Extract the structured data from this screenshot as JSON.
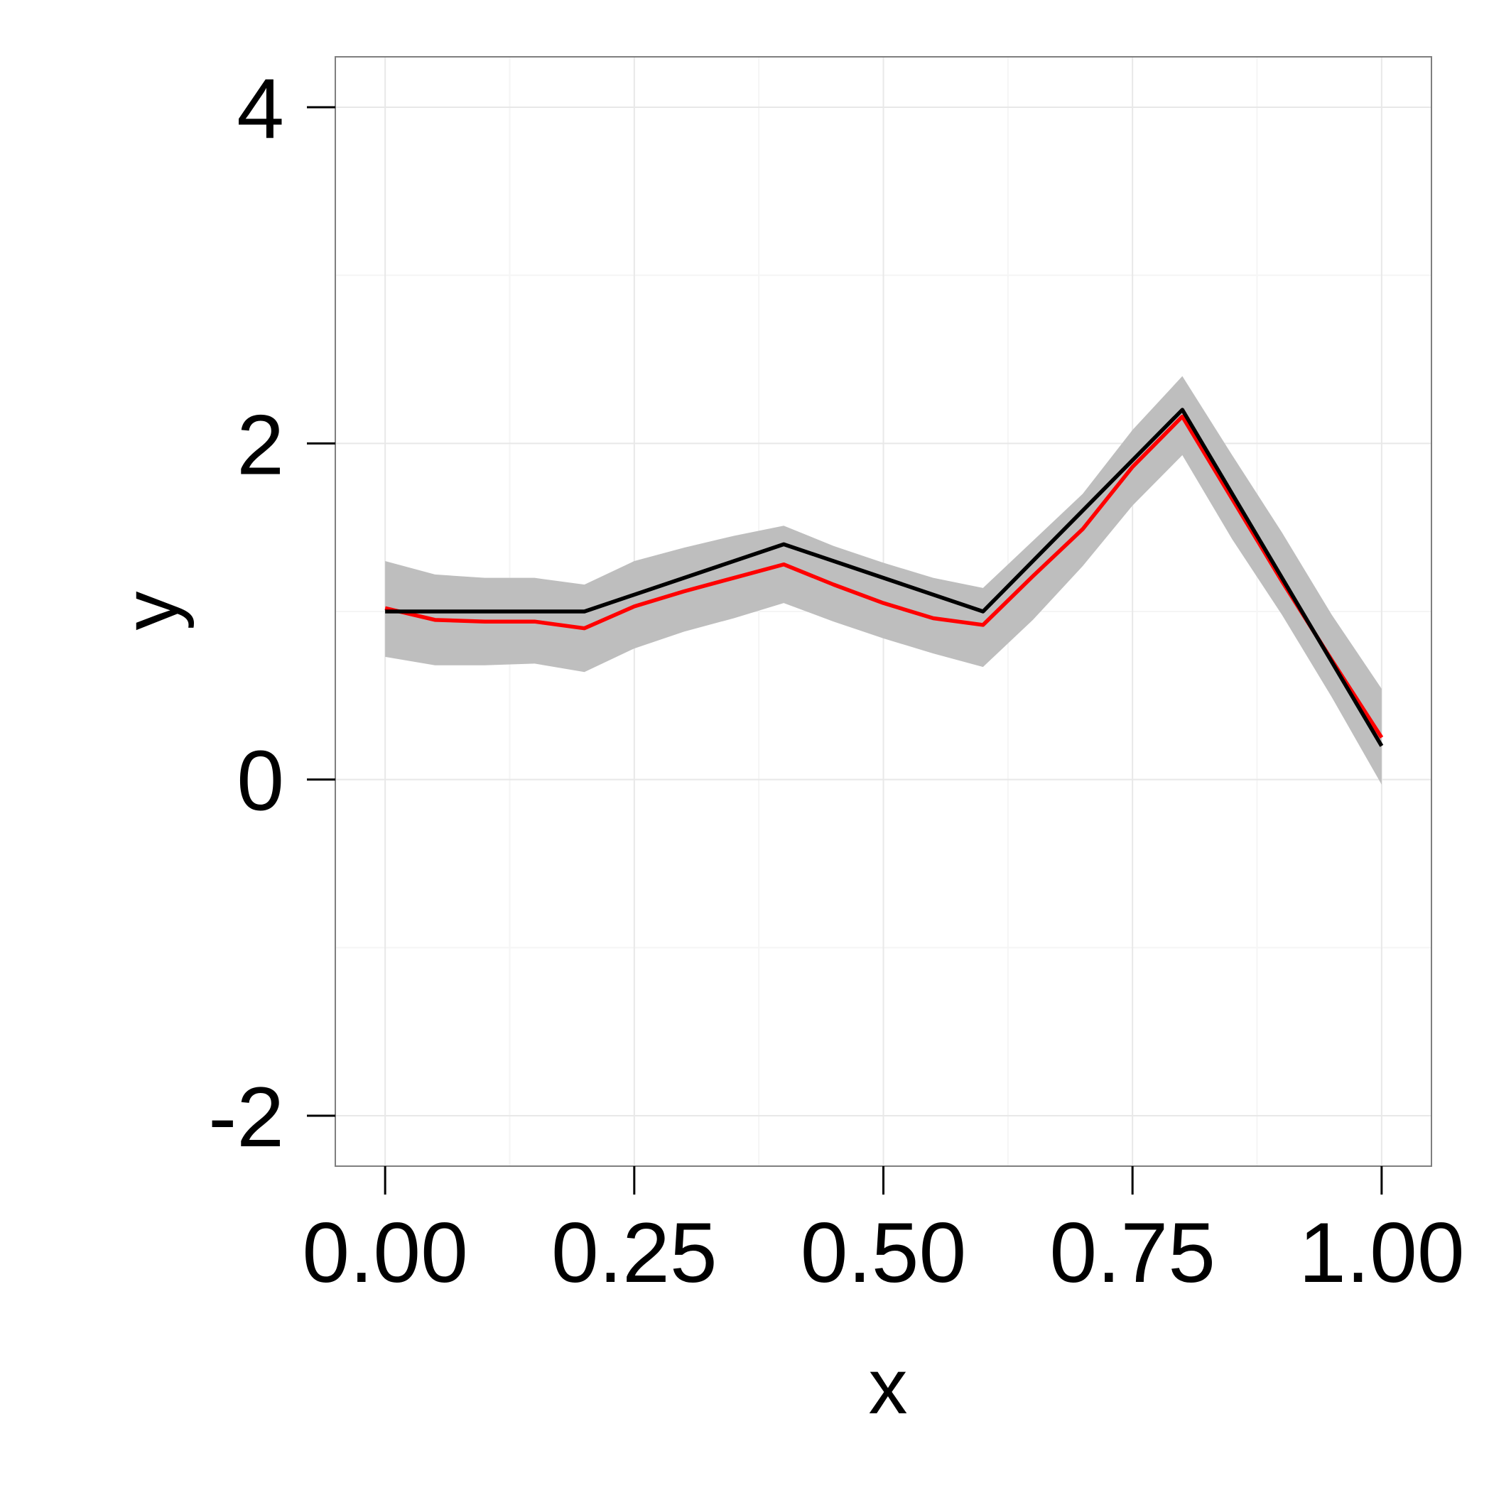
{
  "chart_data": {
    "type": "line",
    "xlabel": "x",
    "ylabel": "y",
    "xlim": [
      -0.05,
      1.05
    ],
    "ylim": [
      -2.3,
      4.3
    ],
    "x_ticks": [
      0.0,
      0.25,
      0.5,
      0.75,
      1.0
    ],
    "x_tick_labels": [
      "0.00",
      "0.25",
      "0.50",
      "0.75",
      "1.00"
    ],
    "y_ticks": [
      -2,
      0,
      2,
      4
    ],
    "y_tick_labels": [
      "-2",
      "0",
      "2",
      "4"
    ],
    "grid": true,
    "band": {
      "x": [
        0.0,
        0.05,
        0.1,
        0.15,
        0.2,
        0.25,
        0.3,
        0.35,
        0.4,
        0.45,
        0.5,
        0.55,
        0.6,
        0.65,
        0.7,
        0.75,
        0.8,
        0.85,
        0.9,
        0.95,
        1.0
      ],
      "lower": [
        0.73,
        0.68,
        0.68,
        0.69,
        0.64,
        0.78,
        0.88,
        0.96,
        1.05,
        0.94,
        0.84,
        0.75,
        0.67,
        0.95,
        1.27,
        1.63,
        1.93,
        1.43,
        0.98,
        0.49,
        -0.03
      ],
      "upper": [
        1.3,
        1.22,
        1.2,
        1.2,
        1.16,
        1.3,
        1.38,
        1.45,
        1.51,
        1.39,
        1.29,
        1.2,
        1.14,
        1.42,
        1.7,
        2.08,
        2.4,
        1.93,
        1.47,
        0.98,
        0.54
      ],
      "color": "#bebebe"
    },
    "series": [
      {
        "color": "#000000",
        "x": [
          0.0,
          0.2,
          0.4,
          0.6,
          0.8,
          1.0
        ],
        "y": [
          1.0,
          1.0,
          1.4,
          1.0,
          2.2,
          0.2
        ]
      },
      {
        "color": "#ff0000",
        "x": [
          0.0,
          0.05,
          0.1,
          0.15,
          0.2,
          0.25,
          0.3,
          0.35,
          0.4,
          0.45,
          0.5,
          0.55,
          0.6,
          0.65,
          0.7,
          0.75,
          0.8,
          0.85,
          0.9,
          0.95,
          1.0
        ],
        "y": [
          1.02,
          0.95,
          0.94,
          0.94,
          0.9,
          1.03,
          1.12,
          1.2,
          1.28,
          1.16,
          1.05,
          0.96,
          0.92,
          1.21,
          1.49,
          1.86,
          2.16,
          1.67,
          1.18,
          0.71,
          0.25
        ]
      }
    ]
  }
}
